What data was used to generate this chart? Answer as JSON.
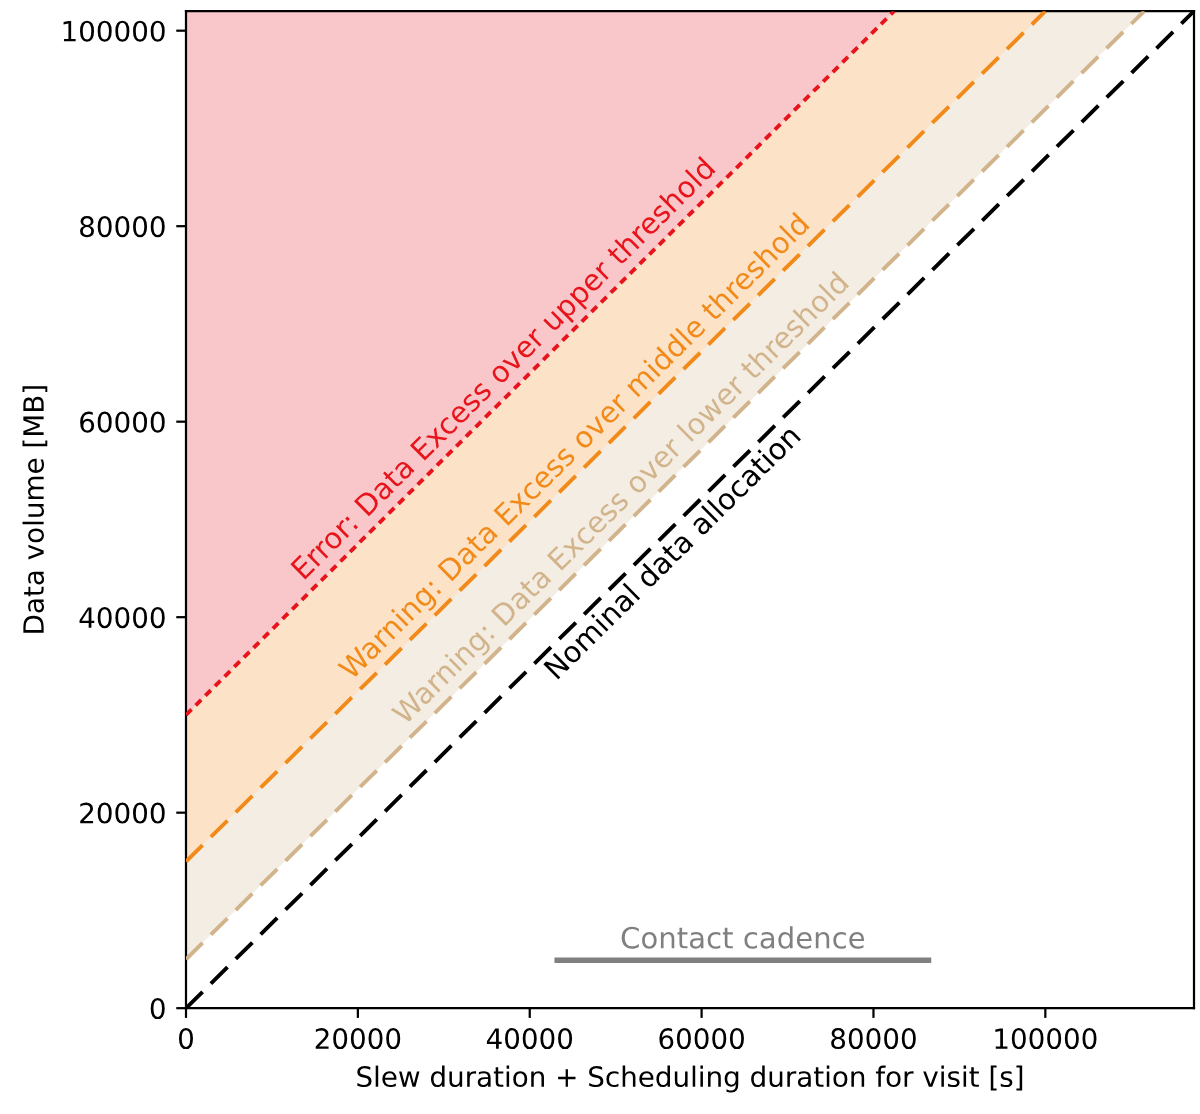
{
  "chart_data": {
    "type": "line",
    "xlabel": "Slew duration + Scheduling duration for visit [s]",
    "ylabel": "Data volume [MB]",
    "xlim": [
      0,
      117300
    ],
    "ylim": [
      0,
      102000
    ],
    "xticks": [
      0,
      20000,
      40000,
      60000,
      80000,
      100000
    ],
    "yticks": [
      0,
      20000,
      40000,
      60000,
      80000,
      100000
    ],
    "grid": false,
    "series": [
      {
        "type": "area",
        "color": "#e8141c",
        "line_style": "dotted",
        "x": [
          0,
          82400
        ],
        "values": [
          30000,
          102000
        ]
      },
      {
        "type": "area",
        "color": "#f28a1a",
        "line_style": "dashed",
        "x": [
          0,
          100000
        ],
        "values": [
          15000,
          102000
        ]
      },
      {
        "type": "area",
        "color": "#d2b48c",
        "line_style": "dashed",
        "x": [
          0,
          111500
        ],
        "values": [
          5000,
          102000
        ]
      },
      {
        "color": "#000000",
        "line_style": "dashed",
        "x": [
          0,
          117300
        ],
        "values": [
          0,
          102000
        ]
      },
      {
        "color": "#808080",
        "line_style": "solid",
        "x": [
          43200,
          86400
        ],
        "values": [
          4900,
          4900
        ]
      }
    ],
    "annotations": [
      "Error: Data Excess over upper threshold",
      "Warning: Data Excess over middle threshold",
      "Warning: Data Excess over lower threshold",
      "Nominal data allocation",
      "Contact cadence"
    ]
  }
}
